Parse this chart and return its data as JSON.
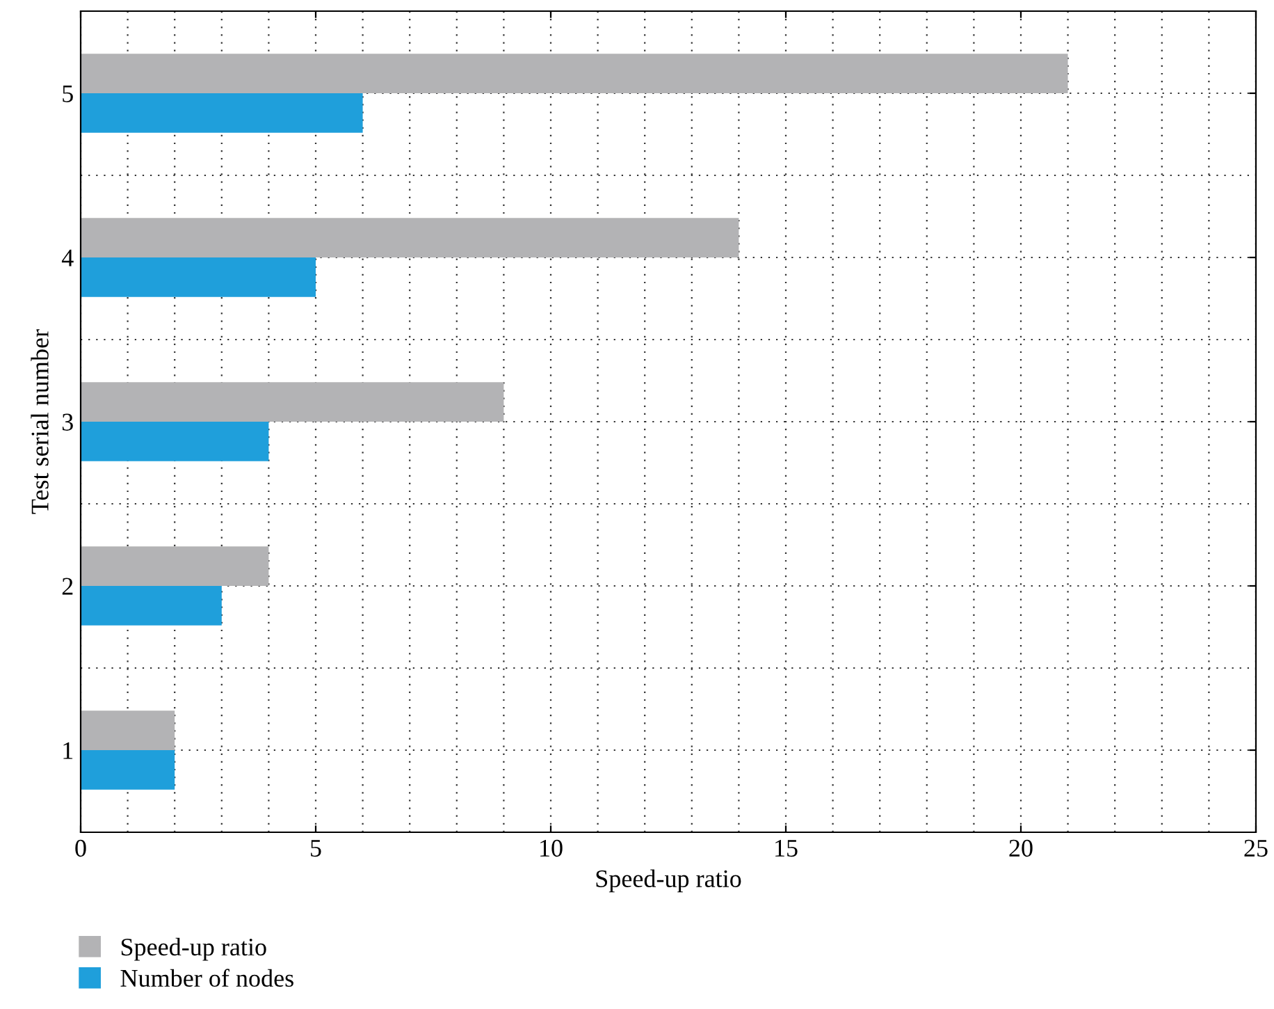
{
  "chart_data": {
    "type": "bar",
    "orientation": "horizontal",
    "xlabel": "Speed-up ratio",
    "ylabel": "Test serial number",
    "categories": [
      "5",
      "4",
      "3",
      "2",
      "1"
    ],
    "series": [
      {
        "name": "Speed-up ratio",
        "color": "#b3b3b5",
        "values": [
          21,
          14,
          9,
          4,
          2
        ]
      },
      {
        "name": "Number of nodes",
        "color": "#1f9fdb",
        "values": [
          6,
          5,
          4,
          3,
          2
        ]
      }
    ],
    "xlim": [
      0,
      25
    ],
    "xticks": [
      0,
      5,
      10,
      15,
      20,
      25
    ],
    "grid": true,
    "legend": "bottom left"
  }
}
